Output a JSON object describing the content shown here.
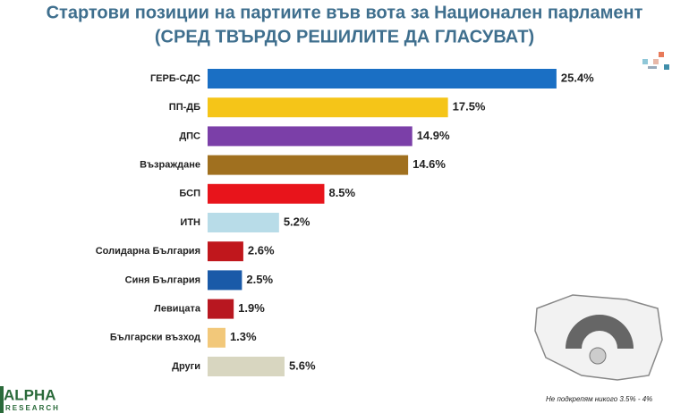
{
  "chart_data": {
    "type": "bar",
    "title": "Стартови позиции на партиите във вота за Национален парламент",
    "subtitle": "(СРЕД ТВЪРДО РЕШИЛИТЕ ДА ГЛАСУВАТ)",
    "categories": [
      "ГЕРБ-СДС",
      "ПП-ДБ",
      "ДПС",
      "Възраждане",
      "БСП",
      "ИТН",
      "Солидарна България",
      "Синя България",
      "Левицата",
      "Български възход",
      "Други"
    ],
    "values": [
      25.4,
      17.5,
      14.9,
      14.6,
      8.5,
      5.2,
      2.6,
      2.5,
      1.9,
      1.3,
      5.6
    ],
    "value_labels": [
      "25.4%",
      "17.5%",
      "14.9%",
      "14.6%",
      "8.5%",
      "5.2%",
      "2.6%",
      "2.5%",
      "1.9%",
      "1.3%",
      "5.6%"
    ],
    "colors": [
      "#1a6fc4",
      "#f5c518",
      "#7b3fa8",
      "#a0701f",
      "#e8141b",
      "#b8dce8",
      "#c0171c",
      "#1a5aa8",
      "#b81720",
      "#f2c87a",
      "#d8d6c0"
    ],
    "note": "Не подкрепям никого 3.5% - 4%"
  },
  "logo": {
    "name": "ALPHA",
    "sub": "RESEARCH"
  }
}
